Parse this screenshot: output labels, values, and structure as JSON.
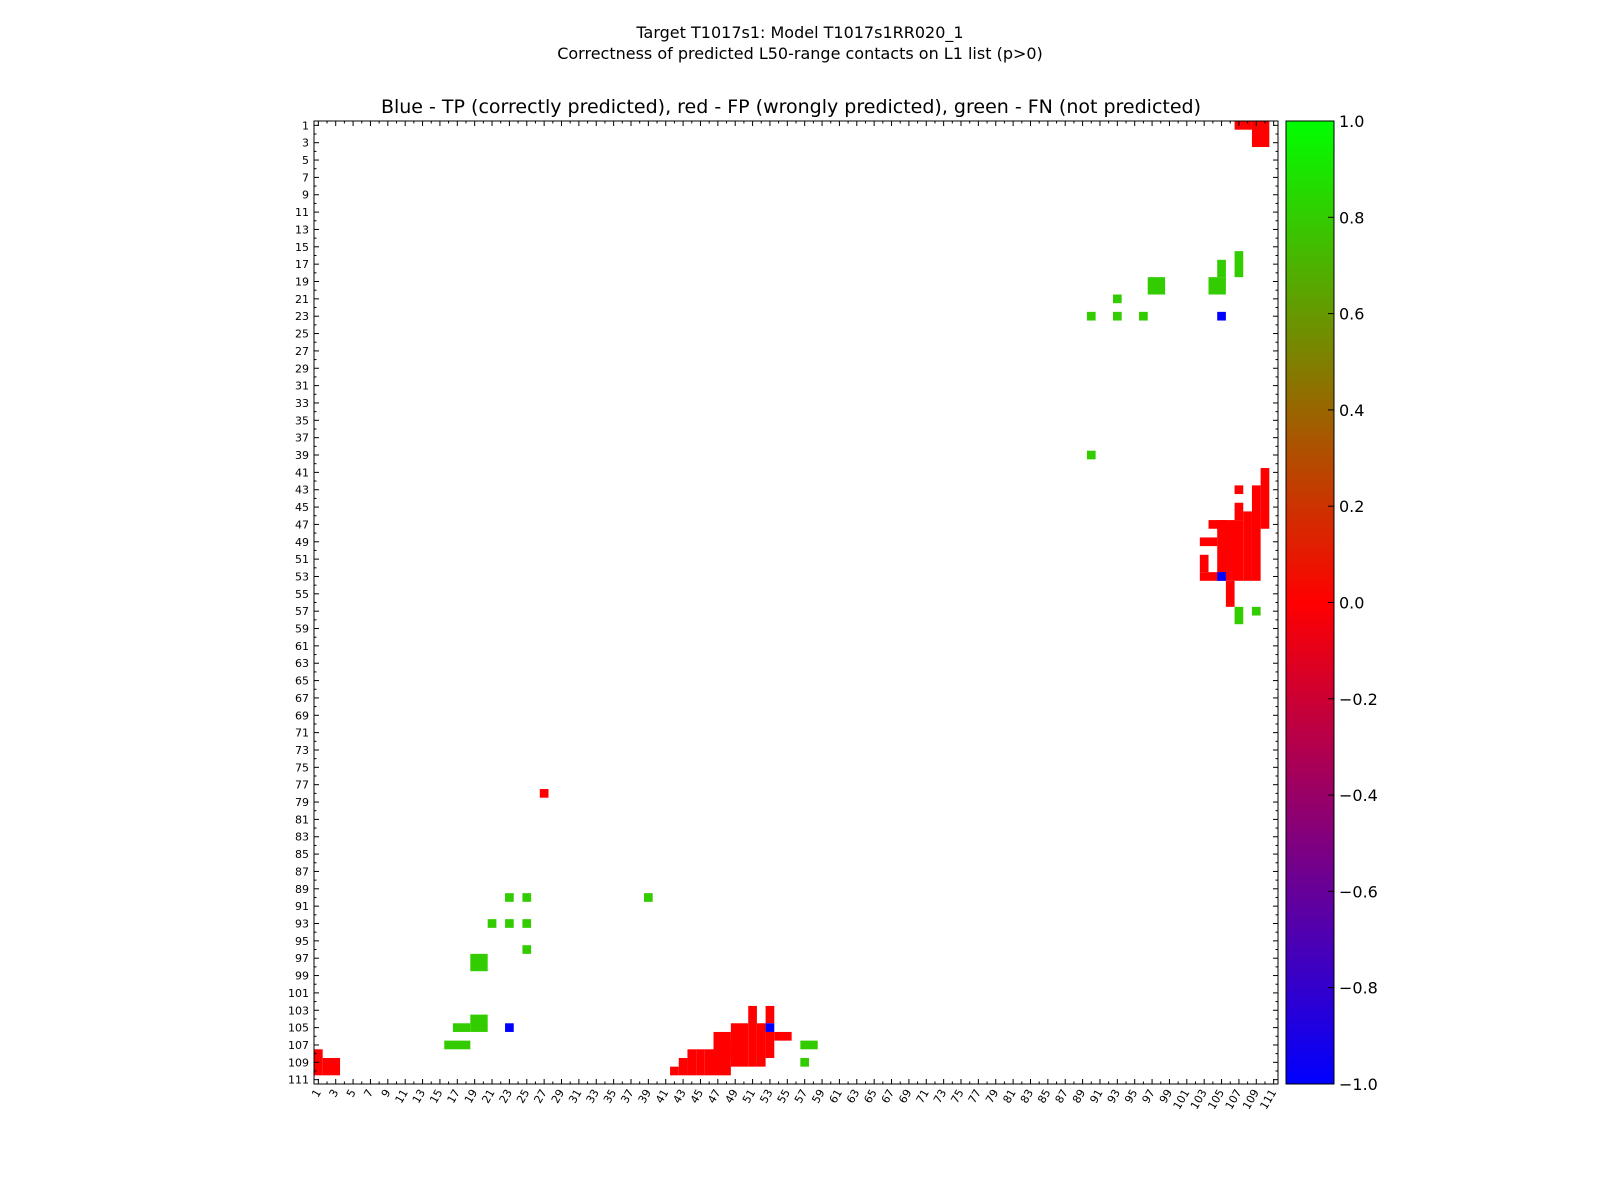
{
  "chart_data": {
    "type": "heatmap",
    "title_line1": "Target T1017s1: Model T1017s1RR020_1",
    "title_line2": "Correctness of predicted L50-range contacts on L1 list (p>0)",
    "subtitle": "Blue - TP (correctly predicted), red - FP (wrongly predicted), green - FN (not predicted)",
    "n_residues": 111,
    "axis_range": [
      1,
      111
    ],
    "x_ticks": [
      1,
      3,
      5,
      7,
      9,
      11,
      13,
      15,
      17,
      19,
      21,
      23,
      25,
      27,
      29,
      31,
      33,
      35,
      37,
      39,
      41,
      43,
      45,
      47,
      49,
      51,
      53,
      55,
      57,
      59,
      61,
      63,
      65,
      67,
      69,
      71,
      73,
      75,
      77,
      79,
      81,
      83,
      85,
      87,
      89,
      91,
      93,
      95,
      97,
      99,
      101,
      103,
      105,
      107,
      109,
      111
    ],
    "y_ticks": [
      1,
      3,
      5,
      7,
      9,
      11,
      13,
      15,
      17,
      19,
      21,
      23,
      25,
      27,
      29,
      31,
      33,
      35,
      37,
      39,
      41,
      43,
      45,
      47,
      49,
      51,
      53,
      55,
      57,
      59,
      61,
      63,
      65,
      67,
      69,
      71,
      73,
      75,
      77,
      79,
      81,
      83,
      85,
      87,
      89,
      91,
      93,
      95,
      97,
      99,
      101,
      103,
      105,
      107,
      109,
      111
    ],
    "colorbar": {
      "range": [
        -1.0,
        1.0
      ],
      "ticks": [
        "1.0",
        "0.8",
        "0.6",
        "0.4",
        "0.2",
        "0.0",
        "−0.2",
        "−0.4",
        "−0.6",
        "−0.8",
        "−1.0"
      ],
      "tick_values": [
        1.0,
        0.8,
        0.6,
        0.4,
        0.2,
        0.0,
        -0.2,
        -0.4,
        -0.6,
        -0.8,
        -1.0
      ],
      "stops": [
        {
          "value": -1.0,
          "color": "#0000ff"
        },
        {
          "value": 0.0,
          "color": "#ff0000"
        },
        {
          "value": 1.0,
          "color": "#00ff00"
        }
      ]
    },
    "categories": {
      "TP": {
        "value": -1.0,
        "color": "#0000ff"
      },
      "FP": {
        "value": 0.0,
        "color": "#ff0000"
      },
      "FN": {
        "value": 0.8,
        "color": "#33cc00"
      }
    },
    "cells": {
      "TP": [
        [
          23,
          105
        ],
        [
          105,
          23
        ],
        [
          53,
          105
        ],
        [
          105,
          53
        ]
      ],
      "FP_rects": [
        [
          1,
          1,
          108,
          110
        ],
        [
          2,
          3,
          109,
          110
        ],
        [
          27,
          27,
          78,
          78
        ],
        [
          42,
          42,
          110,
          110
        ],
        [
          43,
          43,
          109,
          110
        ],
        [
          44,
          44,
          108,
          110
        ],
        [
          45,
          45,
          108,
          110
        ],
        [
          46,
          46,
          108,
          110
        ],
        [
          47,
          48,
          106,
          110
        ],
        [
          48,
          48,
          107,
          108
        ],
        [
          49,
          50,
          105,
          109
        ],
        [
          51,
          51,
          103,
          109
        ],
        [
          52,
          52,
          105,
          109
        ],
        [
          53,
          53,
          103,
          104
        ],
        [
          53,
          53,
          106,
          108
        ],
        [
          54,
          54,
          106,
          106
        ],
        [
          55,
          55,
          106,
          106
        ],
        [
          104,
          105,
          47,
          47
        ],
        [
          103,
          104,
          49,
          49
        ],
        [
          103,
          103,
          51,
          52
        ],
        [
          103,
          104,
          53,
          53
        ],
        [
          106,
          106,
          54,
          56
        ],
        [
          105,
          107,
          47,
          53
        ],
        [
          107,
          107,
          43,
          43
        ],
        [
          107,
          107,
          45,
          46
        ],
        [
          108,
          108,
          46,
          53
        ],
        [
          109,
          109,
          43,
          53
        ],
        [
          110,
          110,
          41,
          47
        ],
        [
          107,
          108,
          1,
          1
        ],
        [
          109,
          110,
          1,
          3
        ]
      ],
      "FN_rects": [
        [
          16,
          18,
          107,
          107
        ],
        [
          17,
          18,
          105,
          105
        ],
        [
          19,
          20,
          104,
          105
        ],
        [
          21,
          21,
          93,
          93
        ],
        [
          23,
          23,
          90,
          90
        ],
        [
          23,
          23,
          93,
          93
        ],
        [
          25,
          25,
          90,
          90
        ],
        [
          25,
          25,
          93,
          93
        ],
        [
          25,
          25,
          96,
          96
        ],
        [
          39,
          39,
          90,
          90
        ],
        [
          19,
          20,
          97,
          98
        ],
        [
          57,
          58,
          107,
          107
        ],
        [
          57,
          57,
          109,
          109
        ],
        [
          90,
          90,
          23,
          23
        ],
        [
          93,
          93,
          21,
          21
        ],
        [
          90,
          90,
          39,
          39
        ],
        [
          93,
          93,
          23,
          23
        ],
        [
          96,
          96,
          23,
          23
        ],
        [
          97,
          98,
          19,
          20
        ],
        [
          105,
          105,
          17,
          18
        ],
        [
          104,
          105,
          19,
          20
        ],
        [
          107,
          107,
          16,
          18
        ],
        [
          107,
          107,
          57,
          58
        ],
        [
          109,
          109,
          57,
          57
        ]
      ]
    }
  }
}
